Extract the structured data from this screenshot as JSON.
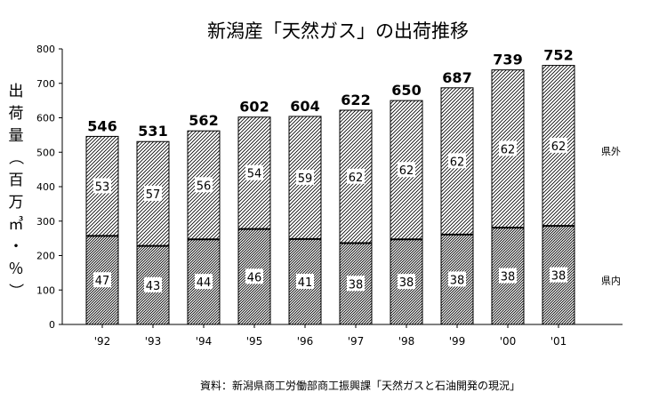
{
  "chart_data": {
    "type": "bar",
    "stacked": true,
    "title": "新潟産「天然ガス」の出荷推移",
    "ylabel": "出荷量（百万㎥・％）",
    "ylim": [
      0,
      800
    ],
    "yticks": [
      0,
      100,
      200,
      300,
      400,
      500,
      600,
      700,
      800
    ],
    "categories": [
      "'92",
      "'93",
      "'94",
      "'95",
      "'96",
      "'97",
      "'98",
      "'99",
      "'00",
      "'01"
    ],
    "totals": [
      546,
      531,
      562,
      602,
      604,
      622,
      650,
      687,
      739,
      752
    ],
    "series": [
      {
        "name": "県内",
        "percent": [
          47,
          43,
          44,
          46,
          41,
          38,
          38,
          38,
          38,
          38
        ],
        "values": [
          257,
          228,
          247,
          277,
          248,
          236,
          247,
          261,
          281,
          286
        ]
      },
      {
        "name": "県外",
        "percent": [
          53,
          57,
          56,
          54,
          59,
          62,
          62,
          62,
          62,
          62
        ],
        "values": [
          289,
          303,
          315,
          325,
          356,
          386,
          403,
          426,
          458,
          466
        ]
      }
    ],
    "grid": false,
    "legend_placement": "right"
  },
  "source_note": "資料：新潟県商工労働部商工振興課「天然ガスと石油開発の現況」",
  "colors": {
    "bar_stroke": "#000000",
    "hatch": "#000000",
    "background": "#ffffff"
  }
}
